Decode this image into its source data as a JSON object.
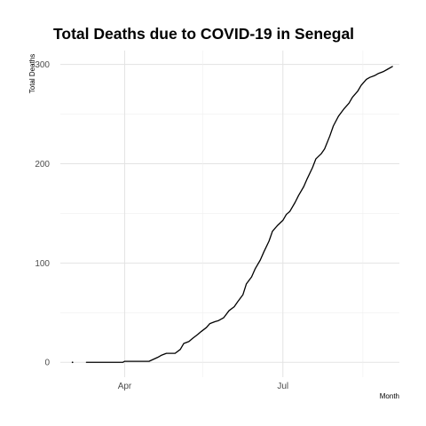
{
  "chart_data": {
    "type": "line",
    "title": "Total Deaths due to COVID-19 in Senegal",
    "xlabel": "Month",
    "ylabel": "Total Deaths",
    "x_ticks": [
      "Apr",
      "Jul"
    ],
    "y_ticks": [
      0,
      100,
      200,
      300
    ],
    "ylim": [
      -15,
      314
    ],
    "xlim": [
      "2020-02-24",
      "2020-09-06"
    ],
    "grid": true,
    "series": [
      {
        "color": "#000000",
        "x": [
          "2020-03-02",
          "2020-03-10",
          "2020-03-31",
          "2020-04-01",
          "2020-04-03",
          "2020-04-05",
          "2020-04-10",
          "2020-04-15",
          "2020-04-20",
          "2020-04-22",
          "2020-04-25",
          "2020-04-27",
          "2020-04-30",
          "2020-05-03",
          "2020-05-05",
          "2020-05-08",
          "2020-05-10",
          "2020-05-13",
          "2020-05-15",
          "2020-05-18",
          "2020-05-20",
          "2020-05-23",
          "2020-05-25",
          "2020-05-28",
          "2020-05-31",
          "2020-06-03",
          "2020-06-05",
          "2020-06-08",
          "2020-06-10",
          "2020-06-13",
          "2020-06-15",
          "2020-06-18",
          "2020-06-20",
          "2020-06-23",
          "2020-06-25",
          "2020-06-28",
          "2020-07-01",
          "2020-07-03",
          "2020-07-05",
          "2020-07-08",
          "2020-07-10",
          "2020-07-13",
          "2020-07-15",
          "2020-07-18",
          "2020-07-20",
          "2020-07-23",
          "2020-07-25",
          "2020-07-28",
          "2020-07-30",
          "2020-08-02",
          "2020-08-05",
          "2020-08-08",
          "2020-08-10",
          "2020-08-13",
          "2020-08-15",
          "2020-08-18",
          "2020-08-20",
          "2020-08-23",
          "2020-08-25",
          "2020-08-28",
          "2020-08-30",
          "2020-09-02"
        ],
        "y": [
          0,
          0,
          0,
          1,
          1,
          1,
          1,
          1,
          5,
          7,
          9,
          9,
          9,
          13,
          19,
          21,
          24,
          28,
          31,
          35,
          39,
          41,
          42,
          45,
          52,
          56,
          61,
          68,
          79,
          86,
          94,
          103,
          111,
          122,
          132,
          138,
          143,
          149,
          152,
          161,
          168,
          177,
          185,
          196,
          205,
          210,
          215,
          228,
          238,
          248,
          255,
          261,
          267,
          273,
          279,
          285,
          287,
          289,
          291,
          293,
          295,
          298
        ]
      }
    ]
  }
}
